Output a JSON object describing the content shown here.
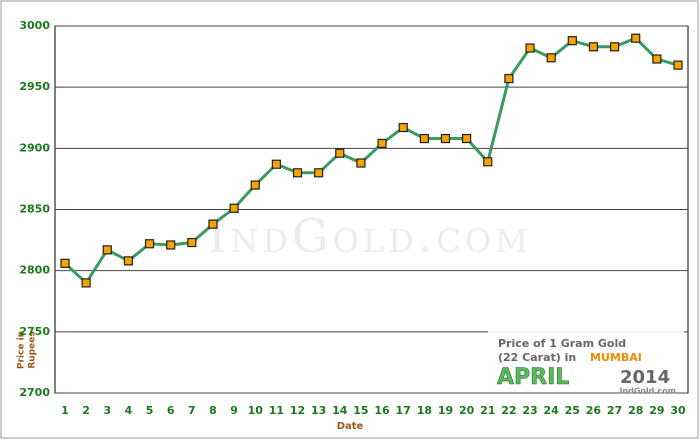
{
  "chart_data": {
    "type": "line",
    "xlabel": "Date",
    "ylabel_lines": [
      "Price in",
      "Rupees"
    ],
    "watermark": "IndGold.com",
    "box_lines": [
      "Price of 1 Gram Gold",
      "(22 Carat) in",
      "MUMBAI",
      "APRIL",
      "2014",
      "IndGold.com"
    ],
    "categories": [
      "1",
      "2",
      "3",
      "4",
      "5",
      "6",
      "7",
      "8",
      "9",
      "10",
      "11",
      "12",
      "13",
      "14",
      "15",
      "16",
      "17",
      "18",
      "19",
      "20",
      "21",
      "22",
      "23",
      "24",
      "25",
      "26",
      "27",
      "28",
      "29",
      "30"
    ],
    "series": [
      {
        "name": "Price",
        "color": "#3c9a5f",
        "marker_color": "#f5a300",
        "values": [
          2806,
          2790,
          2817,
          2808,
          2822,
          2821,
          2823,
          2838,
          2851,
          2870,
          2887,
          2880,
          2880,
          2896,
          2888,
          2904,
          2917,
          2908,
          2908,
          2908,
          2889,
          2957,
          2982,
          2974,
          2988,
          2983,
          2983,
          2990,
          2973,
          2968
        ]
      }
    ],
    "ylim": [
      2700,
      3000
    ],
    "yticks": [
      2700,
      2750,
      2800,
      2850,
      2900,
      2950,
      3000
    ],
    "grid": true
  }
}
